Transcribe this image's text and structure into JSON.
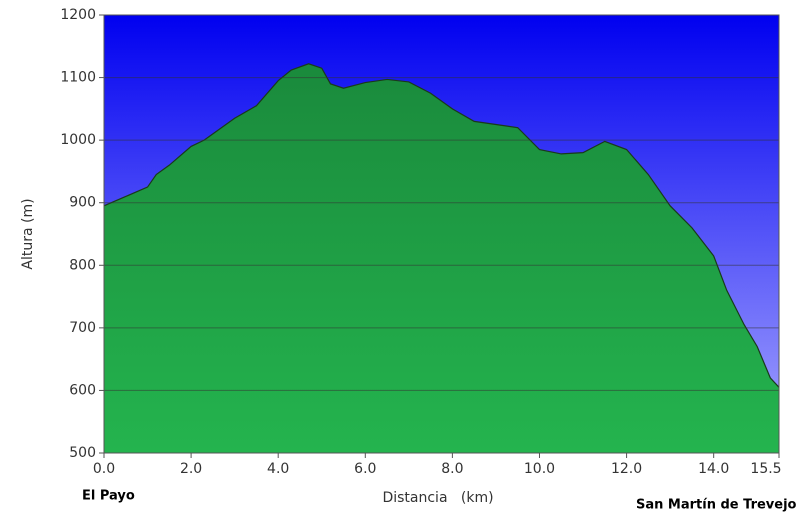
{
  "chart_data": {
    "type": "area",
    "x_label": "Distancia   (km)",
    "y_label": "Altura (m)",
    "annotations": [
      "El Payo",
      "San Martín de Trevejo"
    ],
    "x": [
      0,
      0.5,
      1.0,
      1.2,
      1.5,
      2.0,
      2.3,
      2.5,
      3.0,
      3.5,
      4.0,
      4.3,
      4.7,
      5.0,
      5.2,
      5.5,
      6.0,
      6.5,
      7.0,
      7.5,
      8.0,
      8.5,
      9.0,
      9.5,
      10.0,
      10.5,
      11.0,
      11.5,
      12.0,
      12.5,
      13.0,
      13.5,
      14.0,
      14.3,
      14.7,
      15.0,
      15.3,
      15.5
    ],
    "values": [
      895,
      910,
      925,
      945,
      960,
      990,
      1000,
      1010,
      1035,
      1055,
      1095,
      1112,
      1122,
      1115,
      1090,
      1083,
      1092,
      1097,
      1093,
      1075,
      1050,
      1030,
      1025,
      1020,
      985,
      978,
      980,
      998,
      985,
      945,
      895,
      860,
      815,
      760,
      705,
      670,
      620,
      605
    ],
    "color": "#1f9e44",
    "xlim": [
      0,
      15.5
    ],
    "ylim": [
      500,
      1200
    ],
    "xticks": [
      {
        "value": 0,
        "label": "0.0"
      },
      {
        "value": 2,
        "label": "2.0"
      },
      {
        "value": 4,
        "label": "4.0"
      },
      {
        "value": 6,
        "label": "6.0"
      },
      {
        "value": 8,
        "label": "8.0"
      },
      {
        "value": 10,
        "label": "10.0"
      },
      {
        "value": 12,
        "label": "12.0"
      },
      {
        "value": 14,
        "label": "14.0"
      },
      15.5
    ],
    "yticks": [
      500,
      600,
      700,
      800,
      900,
      1000,
      1100,
      1200
    ],
    "grid": true
  }
}
